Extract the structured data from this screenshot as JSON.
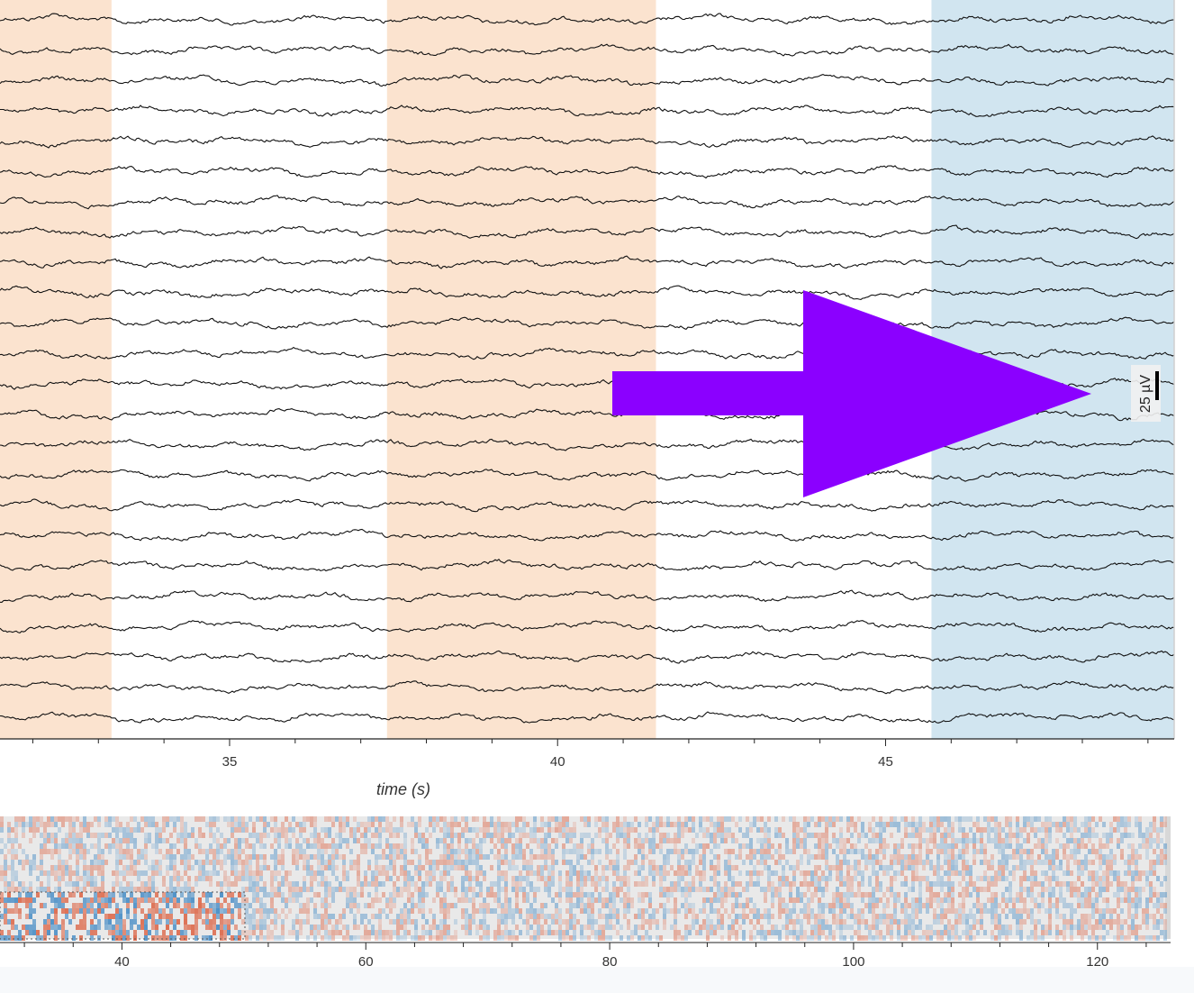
{
  "chart_data": [
    {
      "type": "line",
      "name": "eeg-traces",
      "x_range": [
        31.5,
        49.4
      ],
      "x_ticks_major": [
        35,
        40,
        45
      ],
      "x_ticks_minor_step": 1,
      "xlabel": "time (s)",
      "channel_count": 24,
      "scale_bar": {
        "value": 25,
        "unit": "µV",
        "label": "25 µV"
      },
      "annotations": [
        {
          "start": 31.5,
          "end": 33.2,
          "color": "#fbe3cf"
        },
        {
          "start": 37.4,
          "end": 41.5,
          "color": "#fbe3cf"
        },
        {
          "start": 45.7,
          "end": 49.4,
          "color": "#d1e5f0"
        }
      ],
      "colors": {
        "trace": "#111111",
        "border": "#cfcfcf"
      }
    },
    {
      "type": "heatmap",
      "name": "overview",
      "x_range": [
        30,
        126
      ],
      "x_ticks_major": [
        40,
        60,
        80,
        100,
        120
      ],
      "x_ticks_minor_step": 4,
      "viewport": [
        30,
        49.5
      ],
      "colors": {
        "low": "#4a8ec6",
        "high": "#dd6a4c",
        "mid": "#ececec"
      }
    }
  ],
  "overlay": {
    "arrow_color": "#8b00ff",
    "icon": "arrow-right-icon"
  }
}
